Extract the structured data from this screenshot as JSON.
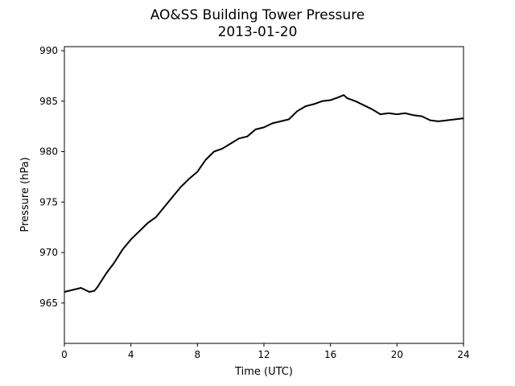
{
  "chart_data": {
    "type": "line",
    "title": "AO&SS Building Tower Pressure",
    "subtitle": "2013-01-20",
    "xlabel": "Time (UTC)",
    "ylabel": "Pressure (hPa)",
    "xlim": [
      0,
      24
    ],
    "ylim": [
      961,
      990.4
    ],
    "xticks": [
      0,
      4,
      8,
      12,
      16,
      20,
      24
    ],
    "yticks": [
      965,
      970,
      975,
      980,
      985,
      990
    ],
    "grid": false,
    "line_color": "#000000",
    "series": [
      {
        "x": [
          0,
          0.5,
          1.0,
          1.5,
          1.8,
          2.0,
          2.5,
          3.0,
          3.5,
          4.0,
          4.5,
          5.0,
          5.5,
          6.0,
          6.5,
          7.0,
          7.5,
          8.0,
          8.5,
          9.0,
          9.5,
          10.0,
          10.5,
          11.0,
          11.5,
          12.0,
          12.5,
          13.0,
          13.5,
          14.0,
          14.5,
          15.0,
          15.5,
          16.0,
          16.5,
          16.8,
          17.0,
          17.5,
          18.0,
          18.5,
          19.0,
          19.5,
          20.0,
          20.5,
          21.0,
          21.5,
          22.0,
          22.5,
          23.0,
          23.5,
          24.0
        ],
        "values": [
          966.1,
          966.3,
          966.5,
          966.1,
          966.2,
          966.6,
          967.9,
          969.0,
          970.3,
          971.3,
          972.1,
          972.9,
          973.5,
          974.5,
          975.5,
          976.5,
          977.3,
          978.0,
          979.2,
          980.0,
          980.3,
          980.8,
          981.3,
          981.5,
          982.2,
          982.4,
          982.8,
          983.0,
          983.2,
          984.0,
          984.5,
          984.7,
          985.0,
          985.1,
          985.4,
          985.6,
          985.3,
          985.0,
          984.6,
          984.2,
          983.7,
          983.8,
          983.7,
          983.8,
          983.6,
          983.5,
          983.1,
          983.0,
          983.1,
          983.2,
          983.3
        ]
      }
    ]
  }
}
